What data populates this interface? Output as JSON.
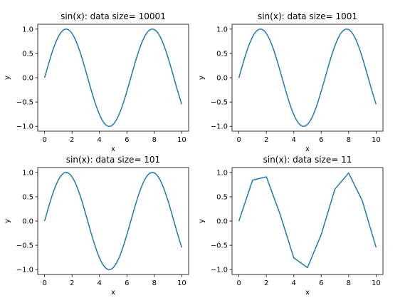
{
  "figure": {
    "line_color": "#1f77b4"
  },
  "chart_data": [
    {
      "type": "line",
      "title": "sin(x): data size= 10001",
      "function": "sin",
      "n_points": 10001,
      "x_range": [
        0,
        10
      ],
      "xlabel": "x",
      "ylabel": "y",
      "xticks": [
        0,
        2,
        4,
        6,
        8,
        10
      ],
      "yticks": [
        -1.0,
        -0.5,
        0.0,
        0.5,
        1.0
      ],
      "ytick_labels": [
        "−1.0",
        "−0.5",
        "0.0",
        "0.5",
        "1.0"
      ],
      "xlim": [
        -0.5,
        10.5
      ],
      "ylim": [
        -1.1,
        1.1
      ],
      "grid": false
    },
    {
      "type": "line",
      "title": "sin(x): data size= 1001",
      "function": "sin",
      "n_points": 1001,
      "x_range": [
        0,
        10
      ],
      "xlabel": "x",
      "ylabel": "y",
      "xticks": [
        0,
        2,
        4,
        6,
        8,
        10
      ],
      "yticks": [
        -1.0,
        -0.5,
        0.0,
        0.5,
        1.0
      ],
      "ytick_labels": [
        "−1.0",
        "−0.5",
        "0.0",
        "0.5",
        "1.0"
      ],
      "xlim": [
        -0.5,
        10.5
      ],
      "ylim": [
        -1.1,
        1.1
      ],
      "grid": false
    },
    {
      "type": "line",
      "title": "sin(x): data size= 101",
      "function": "sin",
      "n_points": 101,
      "x_range": [
        0,
        10
      ],
      "xlabel": "x",
      "ylabel": "y",
      "xticks": [
        0,
        2,
        4,
        6,
        8,
        10
      ],
      "yticks": [
        -1.0,
        -0.5,
        0.0,
        0.5,
        1.0
      ],
      "ytick_labels": [
        "−1.0",
        "−0.5",
        "0.0",
        "0.5",
        "1.0"
      ],
      "xlim": [
        -0.5,
        10.5
      ],
      "ylim": [
        -1.1,
        1.1
      ],
      "grid": false
    },
    {
      "type": "line",
      "title": "sin(x): data size= 11",
      "function": "sin",
      "n_points": 11,
      "x": [
        0,
        1,
        2,
        3,
        4,
        5,
        6,
        7,
        8,
        9,
        10
      ],
      "y": [
        0.0,
        0.841,
        0.909,
        0.141,
        -0.757,
        -0.959,
        -0.279,
        0.657,
        0.989,
        0.412,
        -0.544
      ],
      "xlabel": "x",
      "ylabel": "y",
      "xticks": [
        0,
        2,
        4,
        6,
        8,
        10
      ],
      "yticks": [
        -1.0,
        -0.5,
        0.0,
        0.5,
        1.0
      ],
      "ytick_labels": [
        "−1.0",
        "−0.5",
        "0.0",
        "0.5",
        "1.0"
      ],
      "xlim": [
        -0.5,
        10.5
      ],
      "ylim": [
        -1.1,
        1.1
      ],
      "grid": false
    }
  ]
}
